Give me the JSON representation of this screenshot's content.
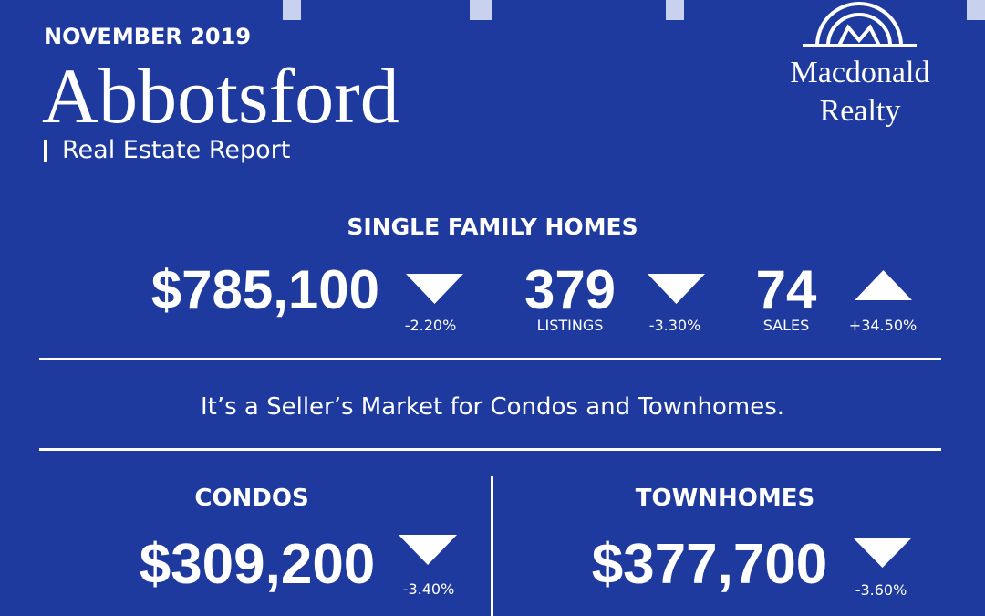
{
  "header": {
    "date": "NOVEMBER 2019",
    "city": "Abbotsford",
    "subtitle": "Real Estate Report"
  },
  "logo": {
    "line1": "Macdonald",
    "line2": "Realty"
  },
  "single_family": {
    "title": "SINGLE FAMILY HOMES",
    "price": "$785,100",
    "price_change": "-2.20%",
    "listings": "379",
    "listings_label": "LISTINGS",
    "listings_change": "-3.30%",
    "sales": "74",
    "sales_label": "SALES",
    "sales_change": "+34.50%"
  },
  "message": "It’s a Seller’s Market for Condos and Townhomes.",
  "condos": {
    "title": "CONDOS",
    "price": "$309,200",
    "price_change": "-3.40%"
  },
  "townhomes": {
    "title": "TOWNHOMES",
    "price": "$377,700",
    "price_change": "-3.60%"
  }
}
